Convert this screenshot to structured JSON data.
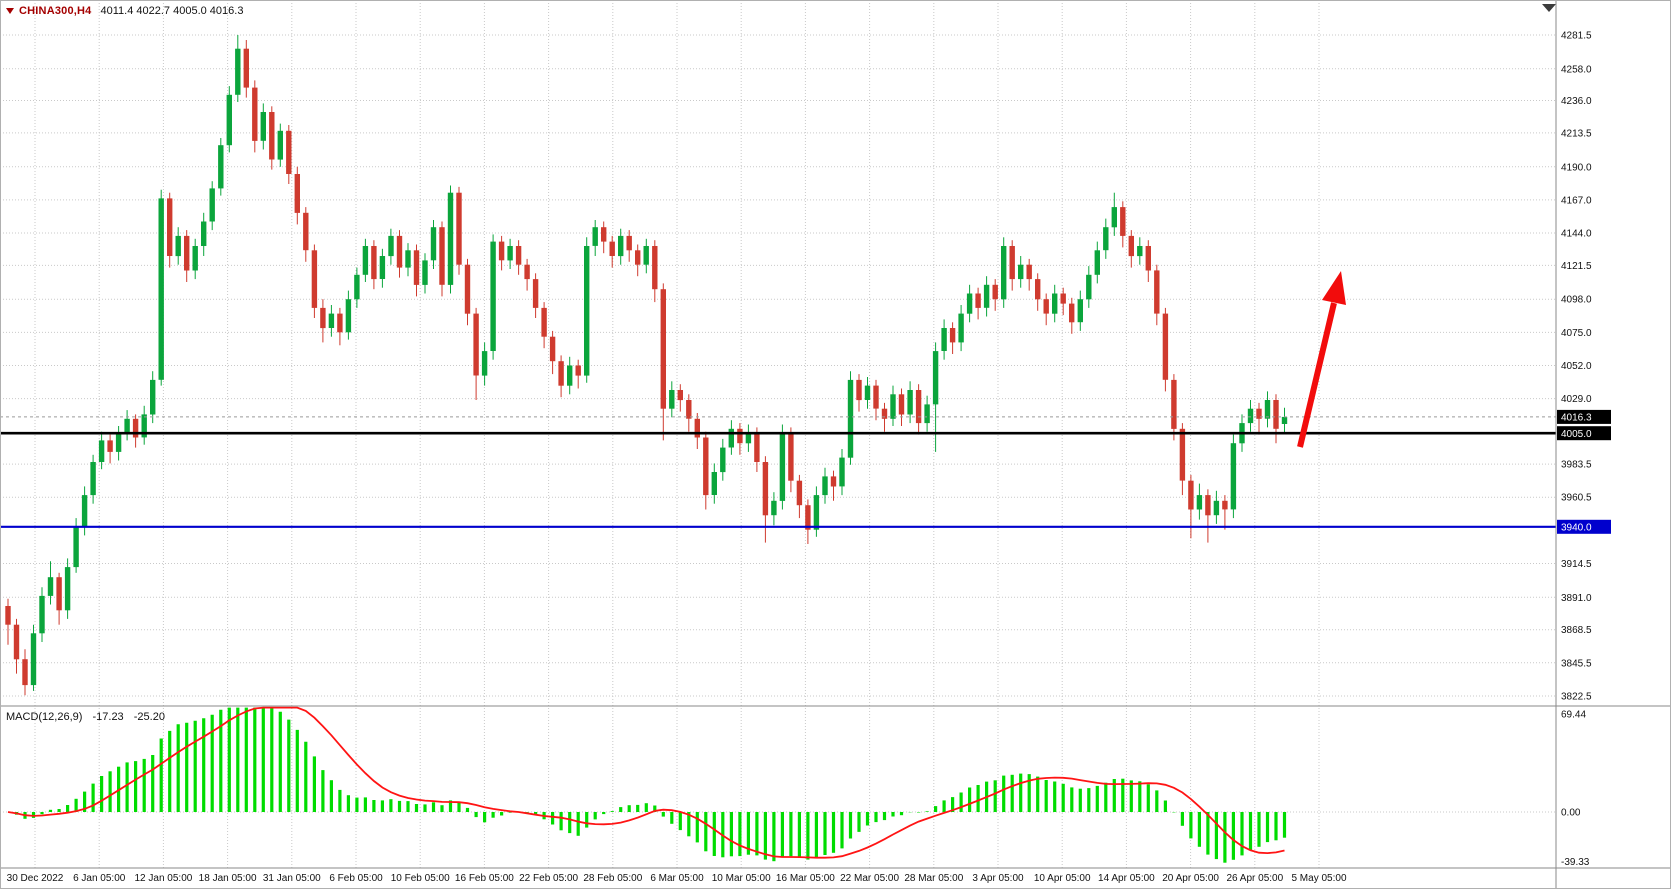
{
  "window": {
    "symbol_label": "CHINA300,H4",
    "ohlc_text": "4011.4 4022.7 4005.0 4016.3"
  },
  "colors": {
    "bull": "#0ba53c",
    "bear": "#cf3b2f",
    "histogram": "#00dc00",
    "signal": "#ff1414",
    "grid": "#c9c9c9",
    "arrow": "#f20c0c",
    "black_level": "#000000",
    "blue_level": "#0000cd",
    "badge_text": "#ffffff",
    "axis_text": "#111111",
    "border": "#8a8a8a"
  },
  "price_axis": {
    "ticks": [
      "4281.5",
      "4258.0",
      "4236.0",
      "4213.5",
      "4190.0",
      "4167.0",
      "4144.0",
      "4121.5",
      "4098.0",
      "4075.0",
      "4052.0",
      "4029.0",
      "3983.5",
      "3960.5",
      "3914.5",
      "3891.0",
      "3868.5",
      "3845.5",
      "3822.5"
    ],
    "badges": [
      {
        "label": "4016.3",
        "price": 4016.3,
        "bg": "#000000"
      },
      {
        "label": "4005.0",
        "price": 4005.0,
        "bg": "#000000"
      },
      {
        "label": "3940.0",
        "price": 3940.0,
        "bg": "#0000cd"
      }
    ]
  },
  "time_axis": {
    "labels": [
      "30 Dec 2022",
      "6 Jan 05:00",
      "12 Jan 05:00",
      "18 Jan 05:00",
      "31 Jan 05:00",
      "6 Feb 05:00",
      "10 Feb 05:00",
      "16 Feb 05:00",
      "22 Feb 05:00",
      "28 Feb 05:00",
      "6 Mar 05:00",
      "10 Mar 05:00",
      "16 Mar 05:00",
      "22 Mar 05:00",
      "28 Mar 05:00",
      "3 Apr 05:00",
      "10 Apr 05:00",
      "14 Apr 05:00",
      "20 Apr 05:00",
      "26 Apr 05:00",
      "5 May 05:00"
    ]
  },
  "macd_panel": {
    "label": "MACD(12,26,9)",
    "value_main": "-17.23",
    "value_signal": "-25.20",
    "axis": [
      "69.44",
      "0.00",
      "-39.33"
    ]
  },
  "chart_data": {
    "type": "candlestick",
    "symbol": "CHINA300",
    "timeframe": "H4",
    "last_bar": {
      "open": 4011.4,
      "high": 4022.7,
      "low": 4005.0,
      "close": 4016.3
    },
    "y_axis_ticks": [
      4281.5,
      4258.0,
      4236.0,
      4213.5,
      4190.0,
      4167.0,
      4144.0,
      4121.5,
      4098.0,
      4075.0,
      4052.0,
      4029.0,
      3983.5,
      3960.5,
      3914.5,
      3891.0,
      3868.5,
      3845.5,
      3822.5
    ],
    "current_price": 4016.3,
    "horizontal_levels": [
      {
        "name": "black-hline",
        "price": 4005.0,
        "color": "#000000",
        "width": 2.6
      },
      {
        "name": "blue-hline",
        "price": 3940.0,
        "color": "#0000cd",
        "width": 2.2
      }
    ],
    "indicator": {
      "type": "MACD",
      "fast": 12,
      "slow": 26,
      "signal": 9,
      "last_main": -17.23,
      "last_signal": -25.2,
      "axis_ticks": [
        69.44,
        0.0,
        -39.33
      ]
    },
    "annotation": {
      "type": "up-arrow",
      "color": "#f20c0c",
      "tail": [
        1300,
        447
      ],
      "tip": [
        1341,
        271
      ]
    },
    "ohlc": [
      [
        3885,
        3890,
        3858,
        3872
      ],
      [
        3872,
        3876,
        3838,
        3848
      ],
      [
        3848,
        3855,
        3823,
        3830
      ],
      [
        3830,
        3872,
        3826,
        3866
      ],
      [
        3866,
        3898,
        3860,
        3892
      ],
      [
        3892,
        3916,
        3886,
        3905
      ],
      [
        3905,
        3908,
        3872,
        3882
      ],
      [
        3882,
        3918,
        3876,
        3912
      ],
      [
        3912,
        3946,
        3908,
        3940
      ],
      [
        3940,
        3968,
        3934,
        3962
      ],
      [
        3962,
        3990,
        3956,
        3985
      ],
      [
        3985,
        4006,
        3980,
        4000
      ],
      [
        4000,
        4004,
        3984,
        3992
      ],
      [
        3992,
        4010,
        3986,
        4005
      ],
      [
        4005,
        4021,
        4000,
        4015
      ],
      [
        4015,
        4018,
        3995,
        4002
      ],
      [
        4002,
        4024,
        3997,
        4018
      ],
      [
        4018,
        4048,
        4012,
        4042
      ],
      [
        4042,
        4174,
        4038,
        4168
      ],
      [
        4168,
        4172,
        4120,
        4128
      ],
      [
        4128,
        4148,
        4122,
        4142
      ],
      [
        4142,
        4146,
        4110,
        4118
      ],
      [
        4118,
        4140,
        4112,
        4135
      ],
      [
        4135,
        4158,
        4128,
        4152
      ],
      [
        4152,
        4180,
        4146,
        4175
      ],
      [
        4175,
        4210,
        4170,
        4205
      ],
      [
        4205,
        4246,
        4200,
        4240
      ],
      [
        4240,
        4281.5,
        4235,
        4272
      ],
      [
        4272,
        4278,
        4238,
        4245
      ],
      [
        4245,
        4250,
        4200,
        4208
      ],
      [
        4208,
        4234,
        4202,
        4228
      ],
      [
        4228,
        4232,
        4188,
        4195
      ],
      [
        4195,
        4220,
        4190,
        4215
      ],
      [
        4215,
        4219,
        4178,
        4185
      ],
      [
        4185,
        4190,
        4150,
        4158
      ],
      [
        4158,
        4162,
        4124,
        4132
      ],
      [
        4132,
        4136,
        4085,
        4092
      ],
      [
        4092,
        4098,
        4068,
        4078
      ],
      [
        4078,
        4094,
        4072,
        4088
      ],
      [
        4088,
        4092,
        4066,
        4075
      ],
      [
        4075,
        4104,
        4070,
        4098
      ],
      [
        4098,
        4120,
        4092,
        4115
      ],
      [
        4115,
        4140,
        4110,
        4135
      ],
      [
        4135,
        4139,
        4105,
        4112
      ],
      [
        4112,
        4133,
        4106,
        4128
      ],
      [
        4128,
        4147,
        4122,
        4142
      ],
      [
        4142,
        4146,
        4113,
        4120
      ],
      [
        4120,
        4137,
        4114,
        4132
      ],
      [
        4132,
        4136,
        4100,
        4108
      ],
      [
        4108,
        4130,
        4102,
        4125
      ],
      [
        4125,
        4153,
        4119,
        4148
      ],
      [
        4148,
        4152,
        4100,
        4108
      ],
      [
        4108,
        4177,
        4102,
        4172
      ],
      [
        4172,
        4176,
        4115,
        4122
      ],
      [
        4122,
        4126,
        4080,
        4088
      ],
      [
        4088,
        4092,
        4028,
        4045
      ],
      [
        4045,
        4068,
        4038,
        4062
      ],
      [
        4062,
        4143,
        4056,
        4138
      ],
      [
        4138,
        4142,
        4118,
        4125
      ],
      [
        4125,
        4140,
        4119,
        4135
      ],
      [
        4135,
        4139,
        4115,
        4122
      ],
      [
        4122,
        4126,
        4104,
        4112
      ],
      [
        4112,
        4116,
        4085,
        4092
      ],
      [
        4092,
        4096,
        4064,
        4072
      ],
      [
        4072,
        4076,
        4046,
        4055
      ],
      [
        4055,
        4059,
        4030,
        4038
      ],
      [
        4038,
        4058,
        4032,
        4052
      ],
      [
        4052,
        4056,
        4036,
        4045
      ],
      [
        4045,
        4141,
        4040,
        4135
      ],
      [
        4135,
        4153,
        4128,
        4148
      ],
      [
        4148,
        4152,
        4130,
        4138
      ],
      [
        4138,
        4142,
        4120,
        4128
      ],
      [
        4128,
        4147,
        4122,
        4142
      ],
      [
        4142,
        4146,
        4124,
        4132
      ],
      [
        4132,
        4136,
        4114,
        4122
      ],
      [
        4122,
        4140,
        4116,
        4135
      ],
      [
        4135,
        4139,
        4096,
        4105
      ],
      [
        4105,
        4109,
        4000,
        4022
      ],
      [
        4022,
        4041,
        4016,
        4035
      ],
      [
        4035,
        4039,
        4020,
        4028
      ],
      [
        4028,
        4032,
        4006,
        4015
      ],
      [
        4015,
        4019,
        3994,
        4002
      ],
      [
        4002,
        4006,
        3952,
        3962
      ],
      [
        3962,
        3984,
        3956,
        3978
      ],
      [
        3978,
        4001,
        3972,
        3995
      ],
      [
        3995,
        4014,
        3990,
        4008
      ],
      [
        4008,
        4012,
        3990,
        3998
      ],
      [
        3998,
        4011,
        3992,
        4005
      ],
      [
        4005,
        4009,
        3978,
        3985
      ],
      [
        3985,
        3989,
        3929,
        3948
      ],
      [
        3948,
        3964,
        3941,
        3958
      ],
      [
        3958,
        4011,
        3952,
        4005
      ],
      [
        4005,
        4009,
        3964,
        3972
      ],
      [
        3972,
        3976,
        3946,
        3955
      ],
      [
        3955,
        3959,
        3928,
        3938
      ],
      [
        3938,
        3968,
        3933,
        3962
      ],
      [
        3962,
        3981,
        3956,
        3975
      ],
      [
        3975,
        3979,
        3958,
        3968
      ],
      [
        3968,
        3994,
        3962,
        3988
      ],
      [
        3988,
        4048,
        3983,
        4042
      ],
      [
        4042,
        4046,
        4020,
        4028
      ],
      [
        4028,
        4044,
        4022,
        4038
      ],
      [
        4038,
        4042,
        4014,
        4022
      ],
      [
        4022,
        4026,
        4006,
        4015
      ],
      [
        4015,
        4038,
        4010,
        4032
      ],
      [
        4032,
        4036,
        4010,
        4018
      ],
      [
        4018,
        4041,
        4012,
        4035
      ],
      [
        4035,
        4039,
        4004,
        4012
      ],
      [
        4012,
        4031,
        4006,
        4025
      ],
      [
        4025,
        4068,
        3992,
        4062
      ],
      [
        4062,
        4084,
        4056,
        4078
      ],
      [
        4078,
        4082,
        4060,
        4068
      ],
      [
        4068,
        4094,
        4062,
        4088
      ],
      [
        4088,
        4108,
        4082,
        4102
      ],
      [
        4102,
        4106,
        4084,
        4092
      ],
      [
        4092,
        4114,
        4086,
        4108
      ],
      [
        4108,
        4112,
        4090,
        4098
      ],
      [
        4098,
        4141,
        4092,
        4135
      ],
      [
        4135,
        4139,
        4104,
        4112
      ],
      [
        4112,
        4128,
        4106,
        4122
      ],
      [
        4122,
        4126,
        4104,
        4112
      ],
      [
        4112,
        4116,
        4090,
        4098
      ],
      [
        4098,
        4102,
        4080,
        4088
      ],
      [
        4088,
        4108,
        4082,
        4102
      ],
      [
        4102,
        4106,
        4087,
        4095
      ],
      [
        4095,
        4099,
        4074,
        4082
      ],
      [
        4082,
        4104,
        4076,
        4098
      ],
      [
        4098,
        4121,
        4092,
        4115
      ],
      [
        4115,
        4138,
        4109,
        4132
      ],
      [
        4132,
        4154,
        4126,
        4148
      ],
      [
        4148,
        4172,
        4142,
        4162
      ],
      [
        4162,
        4166,
        4134,
        4142
      ],
      [
        4142,
        4146,
        4120,
        4128
      ],
      [
        4128,
        4141,
        4122,
        4135
      ],
      [
        4135,
        4139,
        4110,
        4118
      ],
      [
        4118,
        4122,
        4080,
        4088
      ],
      [
        4088,
        4092,
        4034,
        4042
      ],
      [
        4042,
        4046,
        4000,
        4008
      ],
      [
        4008,
        4012,
        3962,
        3972
      ],
      [
        3972,
        3976,
        3932,
        3952
      ],
      [
        3952,
        3970,
        3945,
        3962
      ],
      [
        3962,
        3966,
        3929,
        3948
      ],
      [
        3948,
        3965,
        3942,
        3958
      ],
      [
        3958,
        3962,
        3938,
        3952
      ],
      [
        3952,
        4004,
        3946,
        3998
      ],
      [
        3998,
        4018,
        3992,
        4012
      ],
      [
        4012,
        4028,
        4006,
        4022
      ],
      [
        4022,
        4026,
        4004,
        4015
      ],
      [
        4015,
        4034,
        4009,
        4028
      ],
      [
        4028,
        4032,
        3998,
        4008
      ],
      [
        4011.4,
        4022.7,
        4005,
        4016.3
      ]
    ]
  }
}
